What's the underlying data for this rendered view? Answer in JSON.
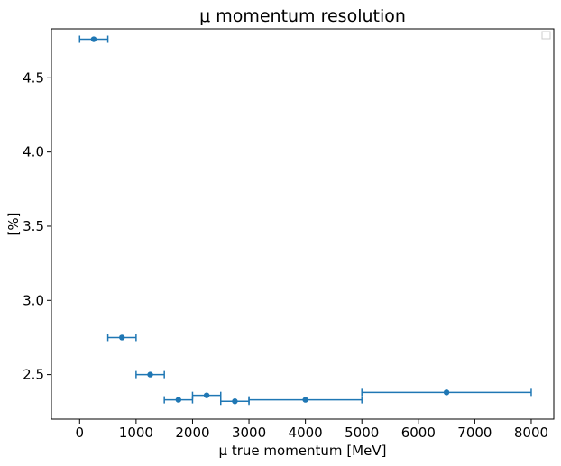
{
  "chart_data": {
    "type": "scatter",
    "title": "μ momentum resolution",
    "xlabel": "μ true momentum [MeV]",
    "ylabel": "[%]",
    "xlim": [
      -500,
      8400
    ],
    "ylim": [
      2.2,
      4.83
    ],
    "xticks": [
      0,
      1000,
      2000,
      3000,
      4000,
      5000,
      6000,
      7000,
      8000
    ],
    "yticks": [
      2.5,
      3.0,
      3.5,
      4.0,
      4.5
    ],
    "grid": false,
    "legend": "top-right, empty",
    "color": "#1f77b4",
    "series": [
      {
        "points": [
          {
            "x": 250,
            "y": 4.76,
            "xerr": 250
          },
          {
            "x": 750,
            "y": 2.75,
            "xerr": 250
          },
          {
            "x": 1250,
            "y": 2.5,
            "xerr": 250
          },
          {
            "x": 1750,
            "y": 2.33,
            "xerr": 250
          },
          {
            "x": 2250,
            "y": 2.36,
            "xerr": 250
          },
          {
            "x": 2750,
            "y": 2.32,
            "xerr": 250
          },
          {
            "x": 4000,
            "y": 2.33,
            "xerr": 1000
          },
          {
            "x": 6500,
            "y": 2.38,
            "xerr": 1500
          }
        ]
      }
    ]
  }
}
